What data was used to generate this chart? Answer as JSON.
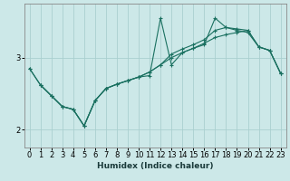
{
  "xlabel": "Humidex (Indice chaleur)",
  "bg_color": "#cce8e8",
  "grid_color": "#aacfcf",
  "line_color": "#1a7060",
  "xlim": [
    -0.5,
    23.5
  ],
  "ylim": [
    1.75,
    3.75
  ],
  "xtick_labels": [
    "0",
    "1",
    "2",
    "3",
    "4",
    "5",
    "6",
    "7",
    "8",
    "9",
    "10",
    "11",
    "12",
    "13",
    "14",
    "15",
    "16",
    "17",
    "18",
    "19",
    "20",
    "21",
    "22",
    "23"
  ],
  "xticks": [
    0,
    1,
    2,
    3,
    4,
    5,
    6,
    7,
    8,
    9,
    10,
    11,
    12,
    13,
    14,
    15,
    16,
    17,
    18,
    19,
    20,
    21,
    22,
    23
  ],
  "yticks": [
    2,
    3
  ],
  "series": [
    {
      "x": [
        0,
        1,
        2,
        3,
        4,
        5,
        6,
        7,
        8,
        9,
        10,
        11,
        12,
        13,
        14,
        15,
        16,
        17,
        18,
        19,
        20,
        21,
        22,
        23
      ],
      "y": [
        2.85,
        2.62,
        2.47,
        2.32,
        2.28,
        2.05,
        2.4,
        2.57,
        2.63,
        2.68,
        2.73,
        2.75,
        3.55,
        2.9,
        3.07,
        3.13,
        3.18,
        3.55,
        3.42,
        3.38,
        3.35,
        3.15,
        3.1,
        2.78
      ]
    },
    {
      "x": [
        0,
        1,
        2,
        3,
        4,
        5,
        6,
        7,
        8,
        9,
        10,
        11,
        12,
        13,
        14,
        15,
        16,
        17,
        18,
        19,
        20,
        21,
        22,
        23
      ],
      "y": [
        2.85,
        2.62,
        2.47,
        2.32,
        2.28,
        2.05,
        2.4,
        2.57,
        2.63,
        2.68,
        2.73,
        2.8,
        2.9,
        3.05,
        3.12,
        3.18,
        3.25,
        3.38,
        3.42,
        3.4,
        3.38,
        3.15,
        3.1,
        2.78
      ]
    },
    {
      "x": [
        1,
        2,
        3,
        4,
        5,
        6,
        7,
        8,
        9,
        10,
        11,
        12,
        13,
        14,
        15,
        16,
        17,
        18,
        19,
        20,
        21,
        22,
        23
      ],
      "y": [
        2.62,
        2.47,
        2.32,
        2.28,
        2.05,
        2.4,
        2.57,
        2.63,
        2.68,
        2.73,
        2.8,
        2.9,
        3.0,
        3.07,
        3.13,
        3.2,
        3.28,
        3.32,
        3.35,
        3.38,
        3.15,
        3.1,
        2.78
      ]
    }
  ]
}
